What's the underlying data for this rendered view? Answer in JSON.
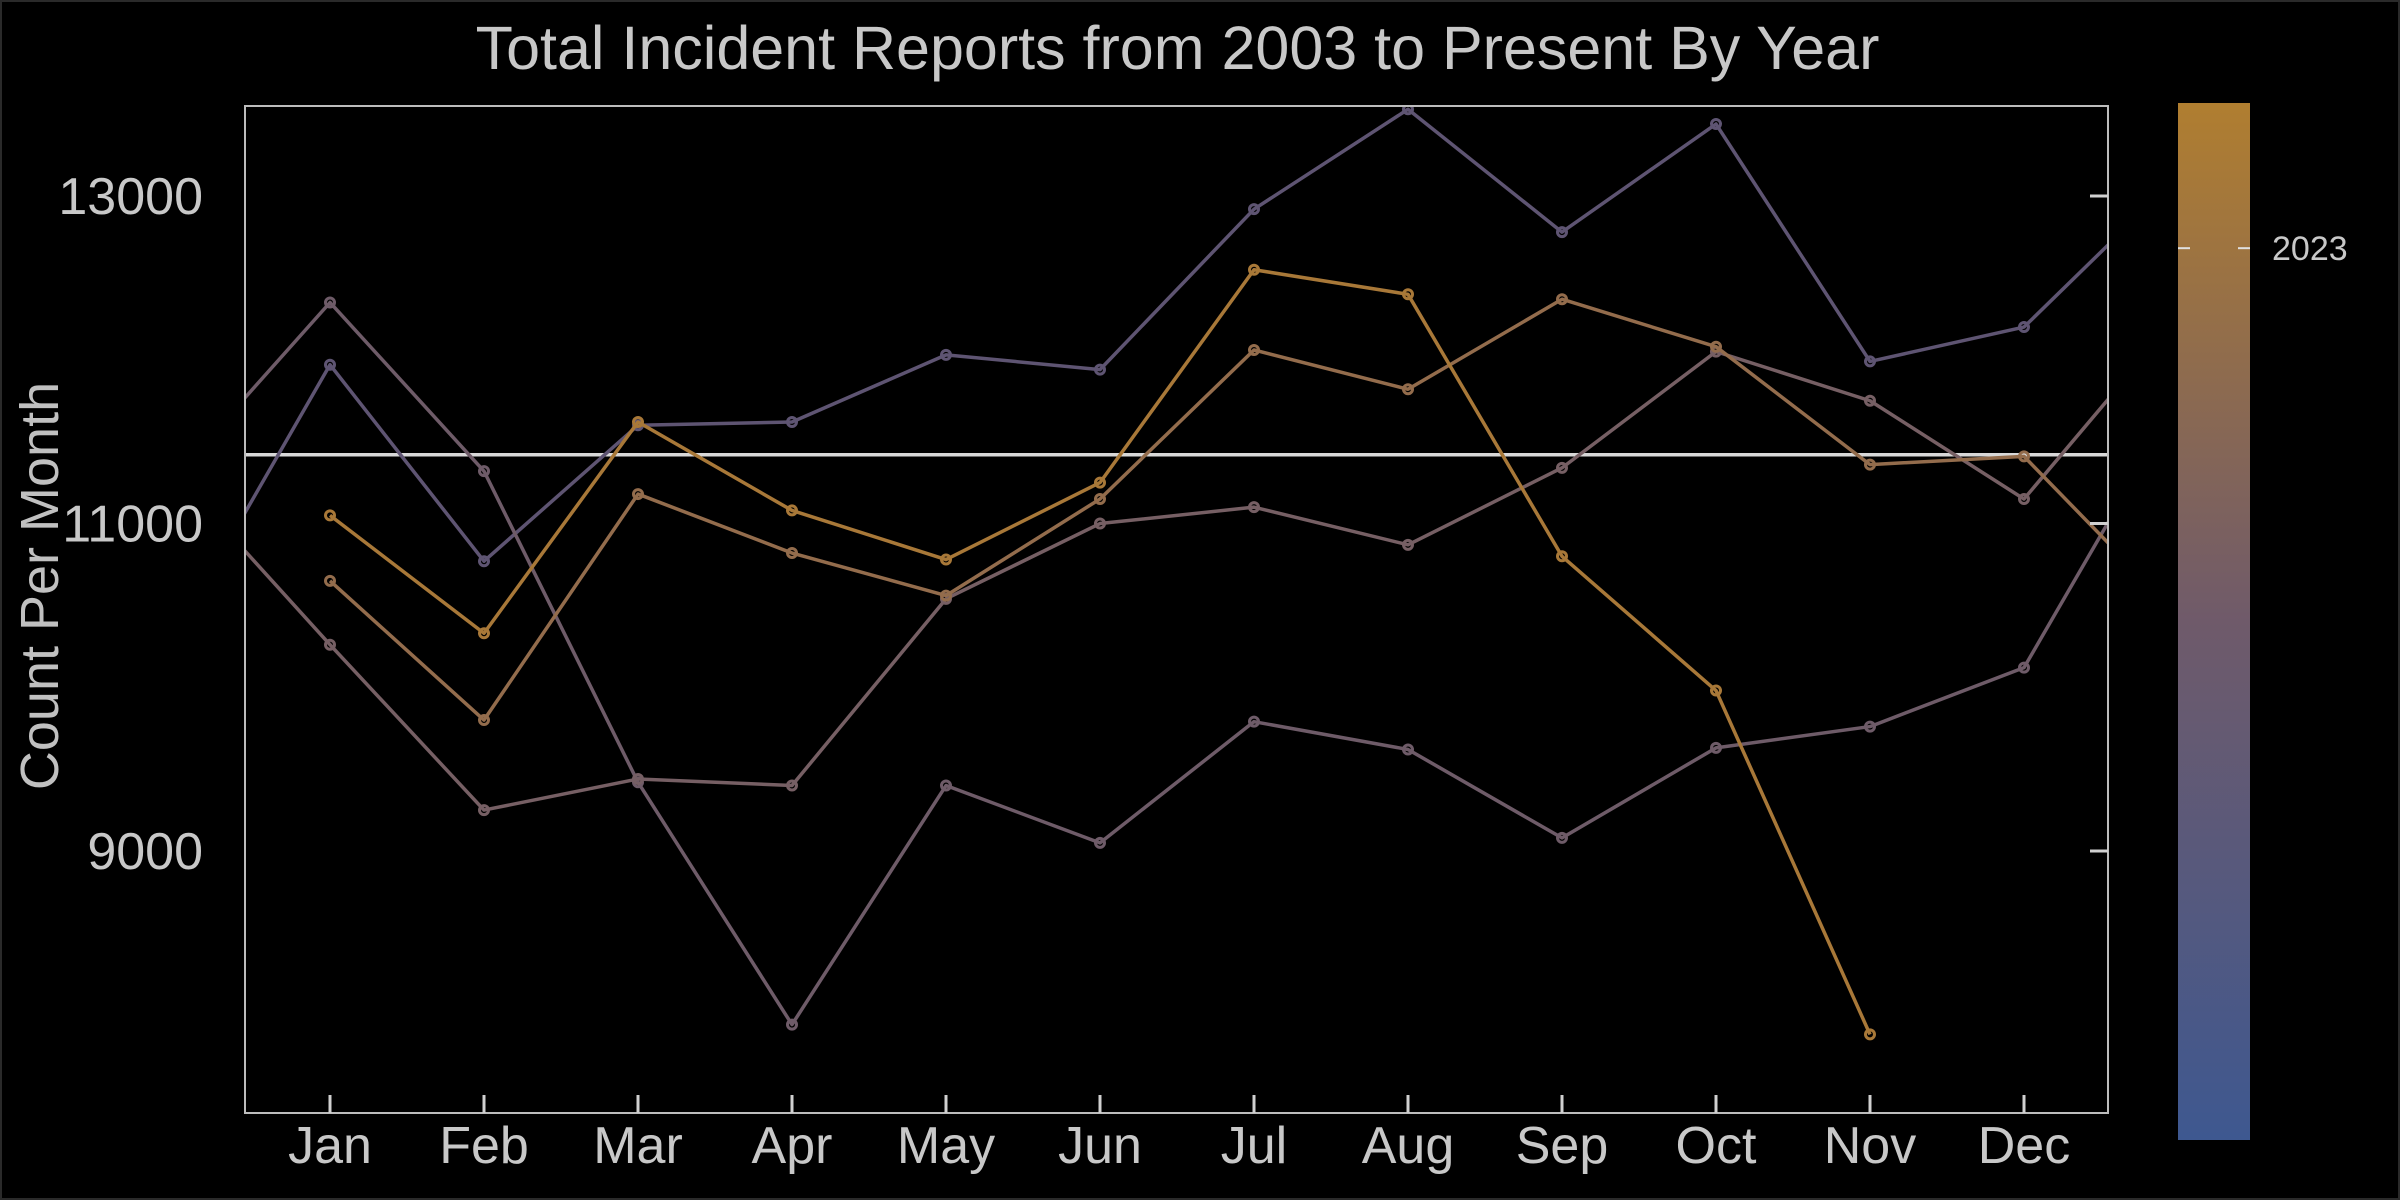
{
  "chart_data": {
    "type": "line",
    "title": "Total Incident Reports from 2003 to Present By Year",
    "xlabel": "",
    "ylabel": "Count Per Month",
    "categories": [
      "Jan",
      "Feb",
      "Mar",
      "Apr",
      "May",
      "Jun",
      "Jul",
      "Aug",
      "Sep",
      "Oct",
      "Nov",
      "Dec"
    ],
    "ylim": [
      7400,
      13550
    ],
    "yticks": [
      9000,
      11000,
      13000
    ],
    "reference_line": 11420,
    "grid": false,
    "legend": "colorbar-right",
    "colorbar": {
      "label": "2023",
      "color_top": "#b07e30",
      "color_bottom": "#3e5890",
      "tick_fraction": 0.86
    },
    "series": [
      {
        "values": [
          11970,
          10770,
          11600,
          11620,
          12030,
          11940,
          12920,
          13530,
          12780,
          13440,
          11990,
          12200
        ],
        "color": "#5e5472",
        "enter": 10960,
        "exit": 12760
      },
      {
        "values": [
          12350,
          11320,
          9420,
          7940,
          9400,
          9050,
          9790,
          9620,
          9080,
          9630,
          9760,
          10120
        ],
        "color": "#6e5b68",
        "enter": 11700,
        "exit": 11110
      },
      {
        "values": [
          10260,
          9250,
          9440,
          9400,
          10540,
          11000,
          11100,
          10870,
          11340,
          12050,
          11750,
          11150
        ],
        "color": "#765f64",
        "enter": 10900,
        "exit": 11830
      },
      {
        "values": [
          10650,
          9800,
          11180,
          10820,
          10560,
          11150,
          12060,
          11820,
          12370,
          12080,
          11360,
          11410
        ],
        "color": "#936c4c",
        "enter": null,
        "exit": 10820
      },
      {
        "values": [
          11050,
          10330,
          11620,
          11080,
          10780,
          11250,
          12550,
          12400,
          10800,
          9980,
          7880,
          null
        ],
        "color": "#a87838",
        "enter": null,
        "exit": null
      }
    ]
  }
}
